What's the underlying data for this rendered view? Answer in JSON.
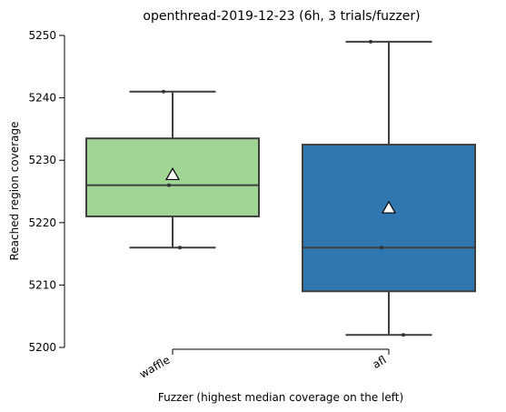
{
  "chart_data": {
    "type": "box",
    "title": "openthread-2019-12-23 (6h, 3 trials/fuzzer)",
    "xlabel": "Fuzzer (highest median coverage on the left)",
    "ylabel": "Reached region coverage",
    "ylim": [
      5200,
      5250
    ],
    "yticks": [
      5200,
      5210,
      5220,
      5230,
      5240,
      5250
    ],
    "categories": [
      "waffle",
      "afl"
    ],
    "boxes": [
      {
        "name": "waffle",
        "color": "#a1d594",
        "whisker_low": 5216,
        "q1": 5221,
        "median": 5226,
        "q3": 5233.5,
        "whisker_high": 5241,
        "mean": 5227.67,
        "points": [
          5216,
          5226,
          5241
        ]
      },
      {
        "name": "afl",
        "color": "#2e77b0",
        "whisker_low": 5202,
        "q1": 5209,
        "median": 5216,
        "q3": 5232.5,
        "whisker_high": 5249,
        "mean": 5222.33,
        "points": [
          5202,
          5216,
          5249
        ]
      }
    ],
    "grid": false,
    "legend": "none"
  }
}
